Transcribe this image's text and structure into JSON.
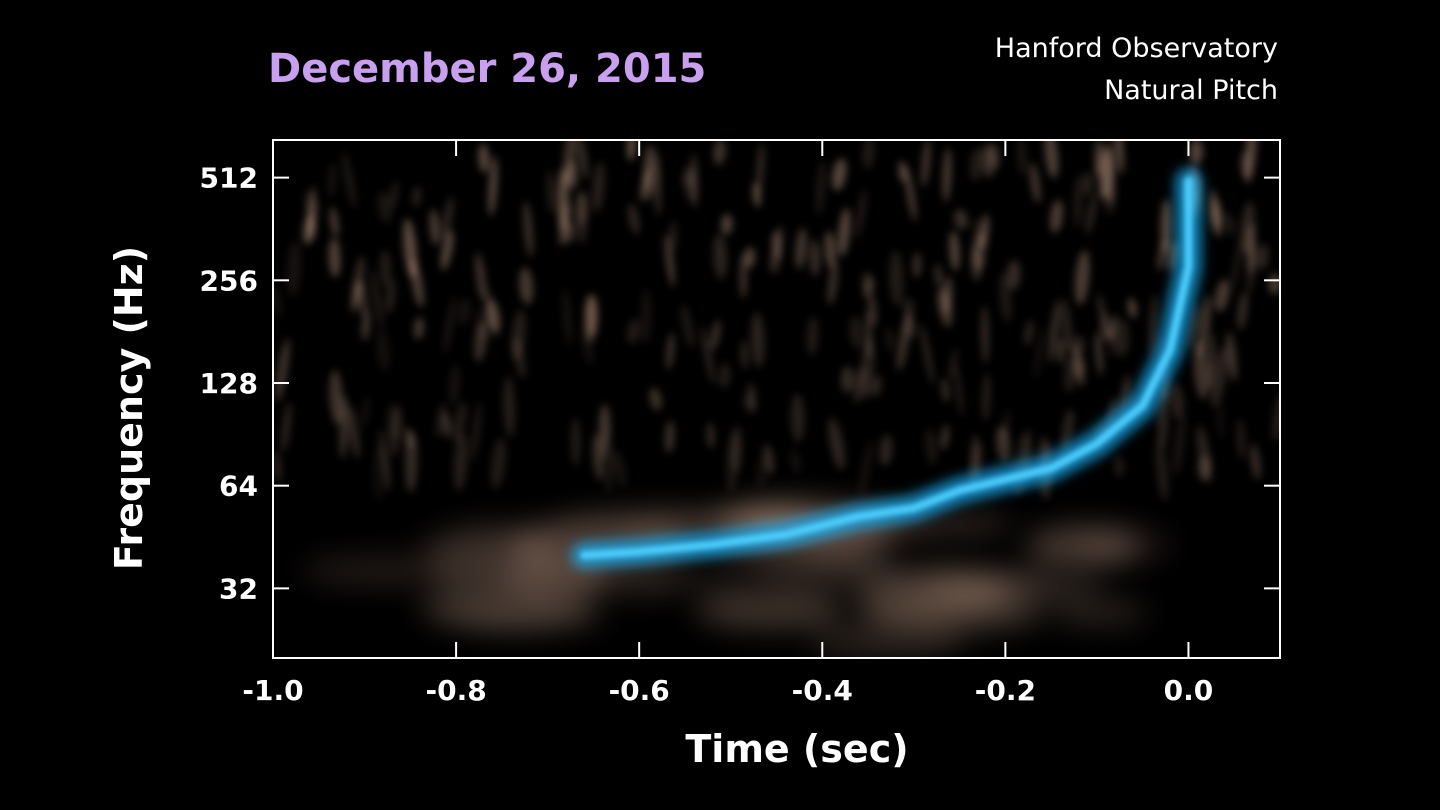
{
  "header": {
    "date": "December 26, 2015",
    "observatory": "Hanford Observatory",
    "pitch": "Natural Pitch"
  },
  "colors": {
    "background": "#000000",
    "date_title": "#c9a0f0",
    "signal": "#1ab0f5",
    "noise": "#e0b49a",
    "axes": "#ffffff"
  },
  "chart_data": {
    "type": "heatmap",
    "title": "",
    "xlabel": "Time (sec)",
    "ylabel": "Frequency (Hz)",
    "xlim": [
      -1.0,
      0.1
    ],
    "ylim": [
      20,
      660
    ],
    "y_scale": "log2",
    "x_ticks": [
      -1.0,
      -0.8,
      -0.6,
      -0.4,
      -0.2,
      0.0
    ],
    "x_tick_labels": [
      "-1.0",
      "-0.8",
      "-0.6",
      "-0.4",
      "-0.2",
      "0.0"
    ],
    "y_ticks": [
      32,
      64,
      128,
      256,
      512
    ],
    "y_tick_labels": [
      "32",
      "64",
      "128",
      "256",
      "512"
    ],
    "signal_track": [
      {
        "t": -0.66,
        "f": 40
      },
      {
        "t": -0.6,
        "f": 41
      },
      {
        "t": -0.52,
        "f": 43
      },
      {
        "t": -0.44,
        "f": 46
      },
      {
        "t": -0.36,
        "f": 52
      },
      {
        "t": -0.3,
        "f": 55
      },
      {
        "t": -0.25,
        "f": 62
      },
      {
        "t": -0.15,
        "f": 72
      },
      {
        "t": -0.1,
        "f": 85
      },
      {
        "t": -0.05,
        "f": 110
      },
      {
        "t": -0.02,
        "f": 160
      },
      {
        "t": 0.0,
        "f": 280
      },
      {
        "t": 0.0,
        "f": 500
      }
    ]
  }
}
